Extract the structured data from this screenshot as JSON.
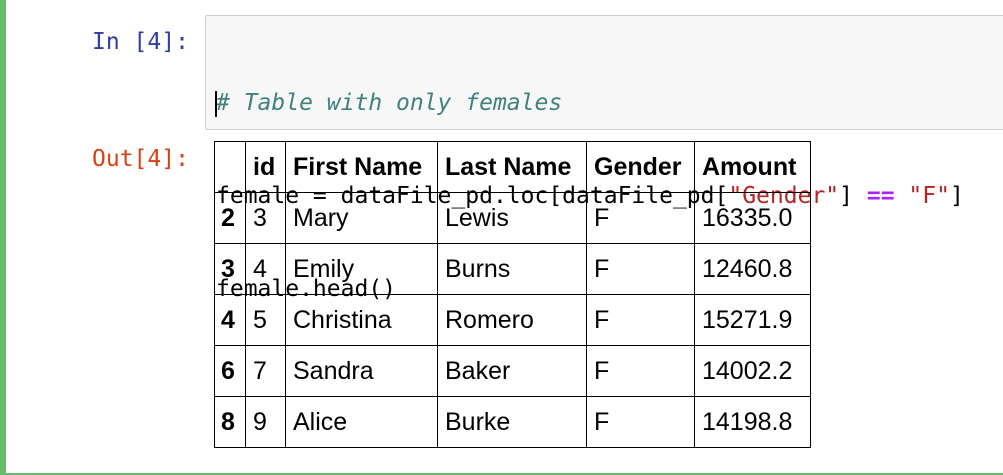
{
  "cell": {
    "in_prompt": "In [4]:",
    "out_prompt": "Out[4]:",
    "code": {
      "line1": "# Table with only females",
      "line2_a": "female = dataFile_pd.loc[dataFile_pd[",
      "line2_str1": "\"Gender\"",
      "line2_b": "] ",
      "line2_op": "==",
      "line2_c": " ",
      "line2_str2": "\"F\"",
      "line2_d": "]",
      "line3": "female.head()"
    }
  },
  "table": {
    "headers": [
      "",
      "id",
      "First Name",
      "Last Name",
      "Gender",
      "Amount"
    ],
    "rows": [
      {
        "index": "2",
        "cells": [
          "3",
          "Mary",
          "Lewis",
          "F",
          "16335.0"
        ]
      },
      {
        "index": "3",
        "cells": [
          "4",
          "Emily",
          "Burns",
          "F",
          "12460.8"
        ]
      },
      {
        "index": "4",
        "cells": [
          "5",
          "Christina",
          "Romero",
          "F",
          "15271.9"
        ]
      },
      {
        "index": "6",
        "cells": [
          "7",
          "Sandra",
          "Baker",
          "F",
          "14002.2"
        ]
      },
      {
        "index": "8",
        "cells": [
          "9",
          "Alice",
          "Burke",
          "F",
          "14198.8"
        ]
      }
    ]
  },
  "colors": {
    "cell_border": "#66bb6a",
    "in_prompt": "#303f9f",
    "out_prompt": "#d84315",
    "comment": "#408080",
    "string": "#ba2121",
    "operator": "#aa22ff"
  }
}
